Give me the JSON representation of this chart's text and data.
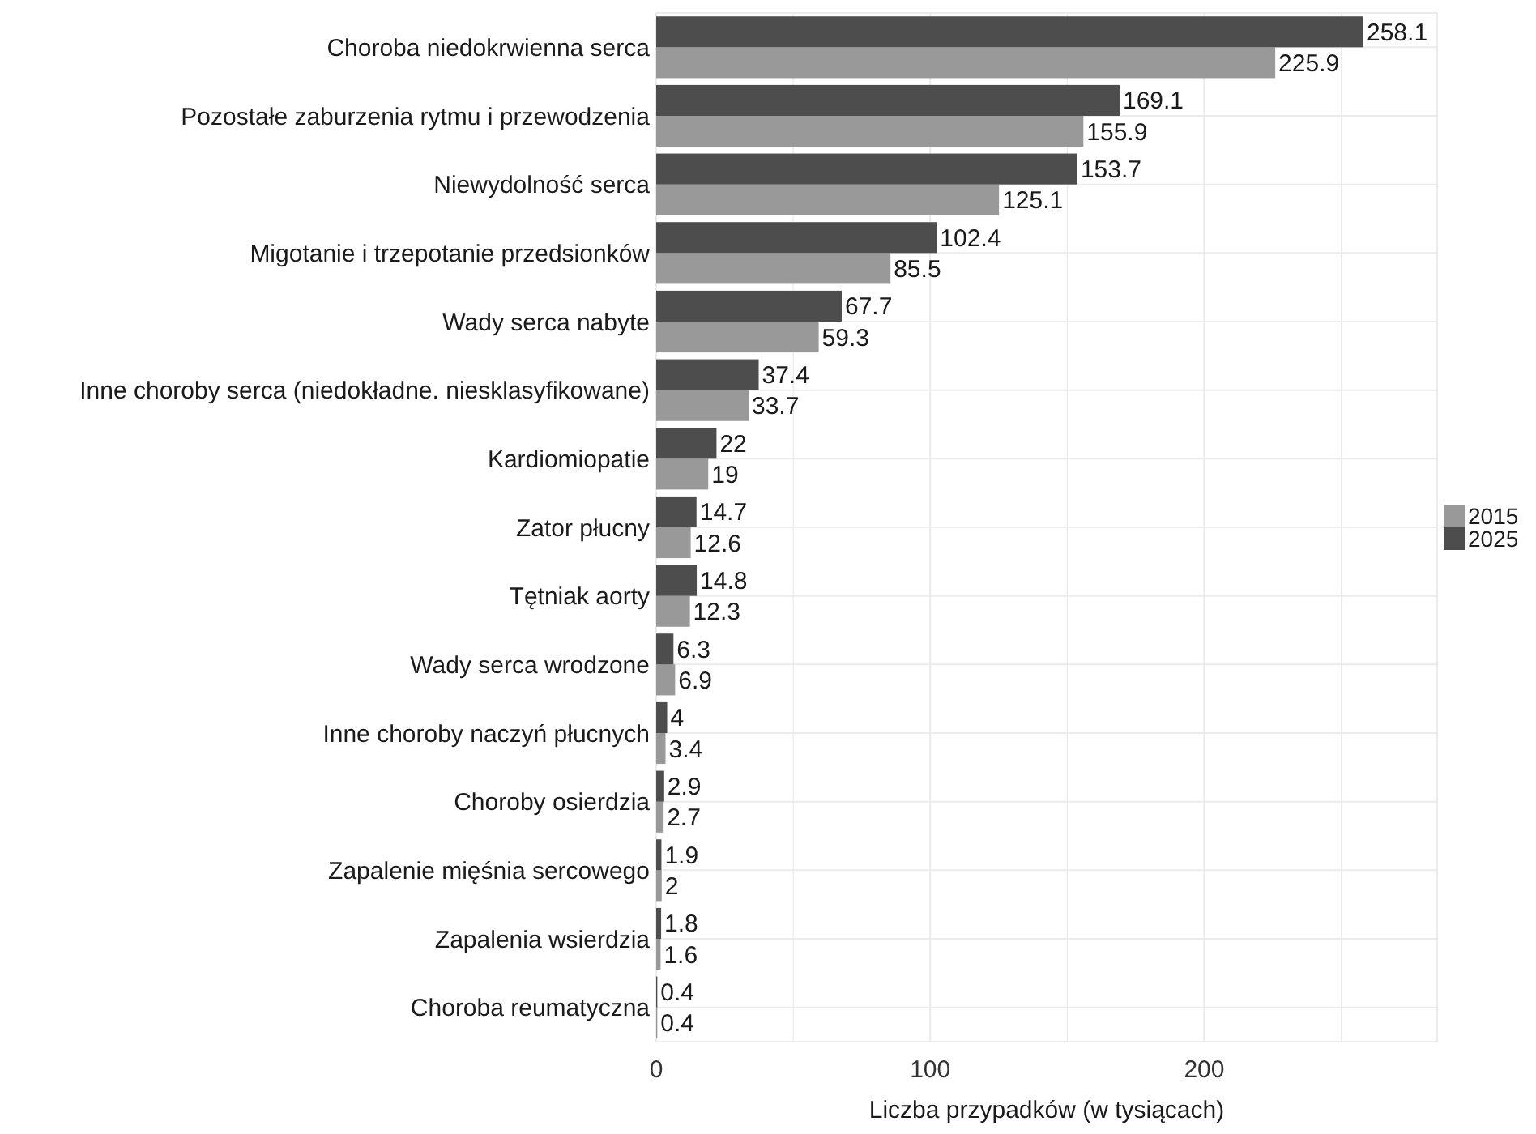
{
  "chart_data": {
    "type": "bar",
    "orientation": "horizontal",
    "xlabel": "Liczba przypadków (w tysiącach)",
    "categories": [
      "Choroba niedokrwienna serca",
      "Pozostałe zaburzenia rytmu i przewodzenia",
      "Niewydolność serca",
      "Migotanie i trzepotanie przedsionków",
      "Wady serca nabyte",
      "Inne choroby serca (niedokładne. niesklasyfikowane)",
      "Kardiomiopatie",
      "Zator płucny",
      "Tętniak aorty",
      "Wady serca wrodzone",
      "Inne choroby naczyń płucnych",
      "Choroby osierdzia",
      "Zapalenie mięśnia sercowego",
      "Zapalenia wsierdzia",
      "Choroba reumatyczna"
    ],
    "series": [
      {
        "name": "2015",
        "color": "#999999",
        "values": [
          225.9,
          155.9,
          125.1,
          85.5,
          59.3,
          33.7,
          19,
          12.6,
          12.3,
          6.9,
          3.4,
          2.7,
          2,
          1.6,
          0.4
        ]
      },
      {
        "name": "2025",
        "color": "#4d4d4d",
        "values": [
          258.1,
          169.1,
          153.7,
          102.4,
          67.7,
          37.4,
          22,
          14.7,
          14.8,
          6.3,
          4,
          2.9,
          1.9,
          1.8,
          0.4
        ]
      }
    ],
    "xlim": [
      0,
      285
    ],
    "xticks": [
      0,
      {
        "value": 50,
        "label": null
      },
      100,
      {
        "value": 150,
        "label": null
      },
      200,
      {
        "value": 250,
        "label": null
      }
    ],
    "grid": true,
    "legend": "right",
    "data_labels": true
  }
}
